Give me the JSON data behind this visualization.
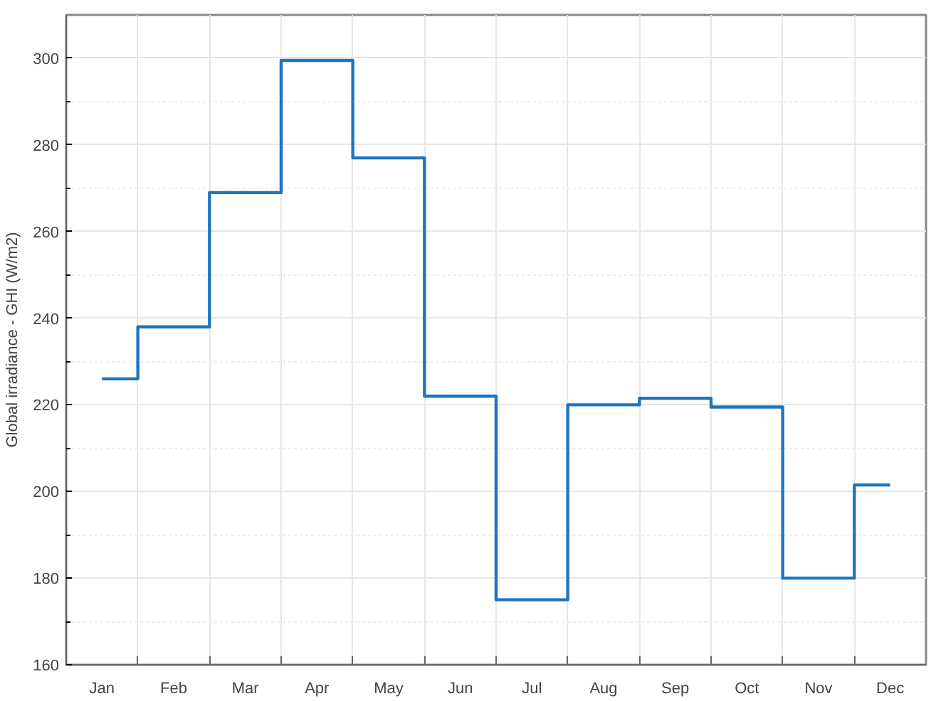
{
  "chart_data": {
    "type": "step",
    "ylabel": "Global irradiance - GHI (W/m2)",
    "categories": [
      "Jan",
      "Feb",
      "Mar",
      "Apr",
      "May",
      "Jun",
      "Jul",
      "Aug",
      "Sep",
      "Oct",
      "Nov",
      "Dec"
    ],
    "series": [
      {
        "color": "#1b75c2",
        "values": [
          226,
          238,
          269,
          299.5,
          277,
          222,
          175,
          220,
          221.5,
          219.5,
          180,
          201.5
        ]
      }
    ],
    "ylim": [
      160,
      310
    ],
    "yticks": [
      160,
      180,
      200,
      220,
      240,
      260,
      280,
      300
    ],
    "grid": true
  }
}
